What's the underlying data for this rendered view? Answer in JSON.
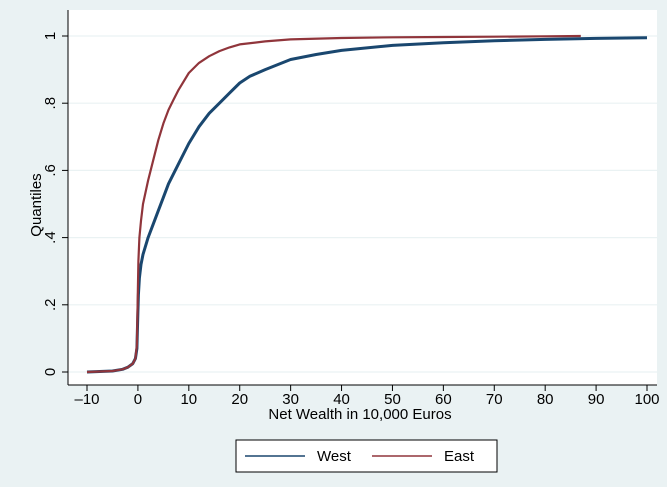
{
  "chart_data": {
    "type": "line",
    "title": "",
    "xlabel": "Net Wealth in 10,000 Euros",
    "ylabel": "Quantiles",
    "xlim": [
      -10,
      100
    ],
    "ylim": [
      0,
      1
    ],
    "x_ticks": [
      -10,
      0,
      10,
      20,
      30,
      40,
      50,
      60,
      70,
      80,
      90,
      100
    ],
    "x_tick_labels": [
      "–10",
      "0",
      "10",
      "20",
      "30",
      "40",
      "50",
      "60",
      "70",
      "80",
      "90",
      "100"
    ],
    "y_ticks": [
      0,
      0.2,
      0.4,
      0.6,
      0.8,
      1
    ],
    "y_tick_labels": [
      "0",
      ".2",
      ".4",
      ".6",
      ".8",
      "1"
    ],
    "grid": "horizontal",
    "legend_position": "bottom",
    "series": [
      {
        "name": "West",
        "color": "#1a476f",
        "x": [
          -10,
          -5,
          -3,
          -2,
          -1,
          -0.5,
          -0.2,
          0,
          0.1,
          0.3,
          0.6,
          1,
          2,
          3,
          4,
          5,
          6,
          8,
          10,
          12,
          14,
          16,
          18,
          20,
          22,
          25,
          30,
          35,
          40,
          50,
          60,
          70,
          80,
          90,
          100
        ],
        "y": [
          0.0,
          0.003,
          0.008,
          0.014,
          0.025,
          0.04,
          0.07,
          0.18,
          0.23,
          0.28,
          0.32,
          0.35,
          0.4,
          0.44,
          0.48,
          0.52,
          0.56,
          0.62,
          0.68,
          0.73,
          0.77,
          0.8,
          0.83,
          0.86,
          0.88,
          0.9,
          0.93,
          0.945,
          0.957,
          0.972,
          0.98,
          0.986,
          0.99,
          0.993,
          0.995
        ]
      },
      {
        "name": "East",
        "color": "#90353b",
        "x": [
          -10,
          -5,
          -3,
          -2,
          -1,
          -0.5,
          -0.2,
          0,
          0.1,
          0.3,
          0.6,
          1,
          2,
          3,
          4,
          5,
          6,
          7,
          8,
          10,
          12,
          14,
          16,
          18,
          20,
          25,
          30,
          40,
          50,
          60,
          70,
          80,
          87
        ],
        "y": [
          0.0,
          0.003,
          0.008,
          0.014,
          0.025,
          0.04,
          0.08,
          0.25,
          0.33,
          0.4,
          0.45,
          0.5,
          0.57,
          0.63,
          0.69,
          0.74,
          0.78,
          0.81,
          0.84,
          0.89,
          0.92,
          0.94,
          0.955,
          0.966,
          0.975,
          0.984,
          0.99,
          0.994,
          0.996,
          0.997,
          0.998,
          0.999,
          1.0
        ]
      }
    ]
  }
}
